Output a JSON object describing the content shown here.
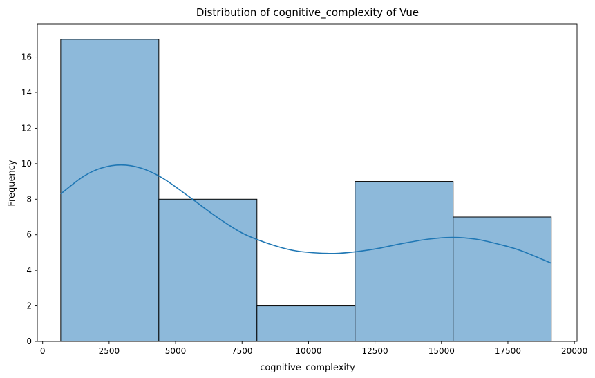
{
  "chart_data": {
    "type": "bar",
    "subtype": "histogram-with-kde",
    "title": "Distribution of cognitive_complexity of Vue",
    "xlabel": "cognitive_complexity",
    "ylabel": "Frequency",
    "xlim": [
      -200,
      20100
    ],
    "ylim": [
      0,
      17.85
    ],
    "xticks": [
      0,
      2500,
      5000,
      7500,
      10000,
      12500,
      15000,
      17500,
      20000
    ],
    "yticks": [
      0,
      2,
      4,
      6,
      8,
      10,
      12,
      14,
      16
    ],
    "bins": [
      {
        "x0": 680,
        "x1": 4370,
        "count": 17
      },
      {
        "x0": 4370,
        "x1": 8060,
        "count": 8
      },
      {
        "x0": 8060,
        "x1": 11750,
        "count": 2
      },
      {
        "x0": 11750,
        "x1": 15440,
        "count": 9
      },
      {
        "x0": 15440,
        "x1": 19130,
        "count": 7
      }
    ],
    "kde": {
      "x": [
        680,
        1500,
        2200,
        2950,
        3700,
        4500,
        5500,
        6500,
        7500,
        8500,
        9500,
        10700,
        11500,
        12500,
        13500,
        14500,
        15400,
        16300,
        17200,
        18000,
        19130
      ],
      "y": [
        8.3,
        9.25,
        9.75,
        9.93,
        9.75,
        9.2,
        8.15,
        7.05,
        6.1,
        5.5,
        5.1,
        4.95,
        5.0,
        5.2,
        5.5,
        5.75,
        5.85,
        5.75,
        5.45,
        5.1,
        4.4
      ]
    },
    "grid": false,
    "bar_color": "#8db9da",
    "bar_edge_color": "#000000",
    "line_color": "#1f77b4"
  }
}
